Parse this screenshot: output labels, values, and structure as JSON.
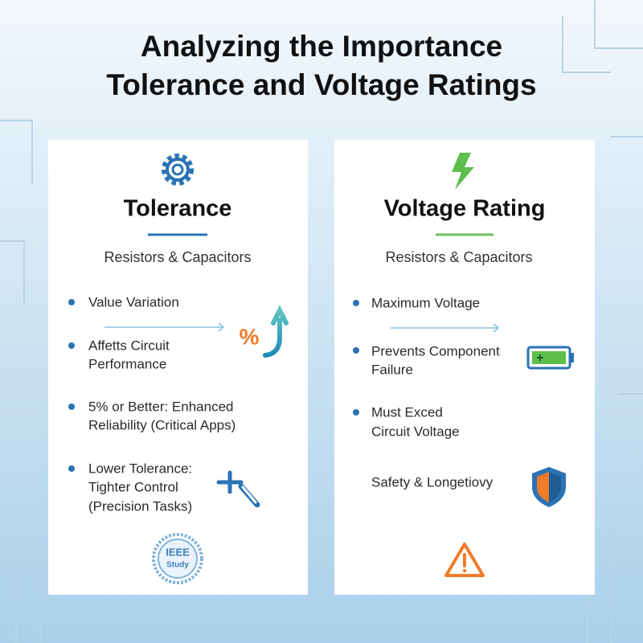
{
  "header": {
    "title_lines": [
      "Analyzing the Importance",
      "Tolerance and Voltage Ratings"
    ]
  },
  "cards": [
    {
      "heading": "Tolerance",
      "subheading": "Resistors & Capacitors",
      "items": [
        [
          "Value Variation"
        ],
        [
          "Affetts Circuit",
          "Performance"
        ],
        [
          "5% or Better: Enhanced",
          "Reliability (Critical Apps)"
        ],
        [
          "Lower Tolerance:",
          "Tighter Control",
          "(Precision Tasks)"
        ]
      ],
      "icon_text": "%",
      "badge_lines": [
        "IEEE",
        "Study"
      ]
    },
    {
      "heading": "Voltage Rating",
      "subheading": "Resistors & Capacitors",
      "items": [
        [
          "Maximum Voltage"
        ],
        [
          "Prevents Component",
          "Failure"
        ],
        [
          "Must Exced",
          "Circuit Voltage"
        ],
        [
          "Safety & Longetiovy"
        ]
      ]
    }
  ]
}
